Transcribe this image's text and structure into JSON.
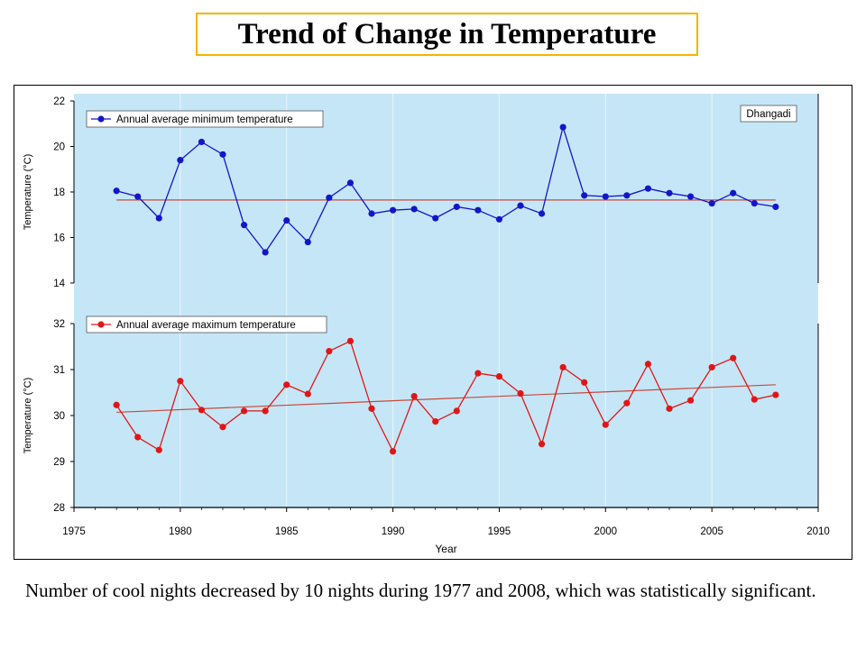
{
  "page_title": "Trend of  Change in Temperature",
  "caption": "Number of cool nights decreased by 10 nights during 1977 and 2008, which  was statistically significant.",
  "colors": {
    "plot_background": "#c5e6f7",
    "min_series": "#1515c8",
    "max_series": "#e01616",
    "trend_line": "#c84a3a",
    "title_border": "#f4b400"
  },
  "chart_data": [
    {
      "type": "line",
      "ylabel": "Temperature (°C)",
      "ylim": [
        14,
        22
      ],
      "yticks": [
        14,
        16,
        18,
        20,
        22
      ],
      "xlim": [
        1975,
        2010
      ],
      "station_label": "Dhangadi",
      "grid": "vertical",
      "legend_position": "top-left",
      "series": [
        {
          "name": "Annual average minimum temperature",
          "x": [
            1977,
            1978,
            1979,
            1980,
            1981,
            1982,
            1983,
            1984,
            1985,
            1986,
            1987,
            1988,
            1989,
            1990,
            1991,
            1992,
            1993,
            1994,
            1995,
            1996,
            1997,
            1998,
            1999,
            2000,
            2001,
            2002,
            2003,
            2004,
            2005,
            2006,
            2007,
            2008
          ],
          "values": [
            18.05,
            17.8,
            16.85,
            19.4,
            20.2,
            19.65,
            16.55,
            15.35,
            16.75,
            15.8,
            17.75,
            18.4,
            17.05,
            17.2,
            17.25,
            16.85,
            17.35,
            17.2,
            16.8,
            17.4,
            17.05,
            20.85,
            17.85,
            17.8,
            17.85,
            18.15,
            17.95,
            17.8,
            17.5,
            17.95,
            17.5,
            17.35
          ]
        }
      ],
      "trend": {
        "x": [
          1977,
          2008
        ],
        "values": [
          17.65,
          17.65
        ]
      }
    },
    {
      "type": "line",
      "ylabel": "Temperature (°C)",
      "xlabel": "Year",
      "ylim": [
        28,
        32
      ],
      "yticks": [
        28,
        29,
        30,
        31,
        32
      ],
      "xlim": [
        1975,
        2010
      ],
      "xticks": [
        1975,
        1980,
        1985,
        1990,
        1995,
        2000,
        2005,
        2010
      ],
      "grid": "vertical",
      "legend_position": "top-left",
      "series": [
        {
          "name": "Annual average maximum temperature",
          "x": [
            1977,
            1978,
            1979,
            1980,
            1981,
            1982,
            1983,
            1984,
            1985,
            1986,
            1987,
            1988,
            1989,
            1990,
            1991,
            1992,
            1993,
            1994,
            1995,
            1996,
            1997,
            1998,
            1999,
            2000,
            2001,
            2002,
            2003,
            2004,
            2005,
            2006,
            2007,
            2008
          ],
          "values": [
            30.23,
            29.53,
            29.25,
            30.75,
            30.12,
            29.75,
            30.1,
            30.1,
            30.67,
            30.47,
            31.4,
            31.62,
            30.15,
            29.22,
            30.42,
            29.87,
            30.1,
            30.92,
            30.85,
            30.48,
            29.38,
            31.05,
            30.72,
            29.8,
            30.27,
            31.12,
            30.15,
            30.33,
            31.05,
            31.25,
            30.35,
            30.45
          ]
        }
      ],
      "trend": {
        "x": [
          1977,
          2008
        ],
        "values": [
          30.07,
          30.67
        ]
      }
    }
  ]
}
